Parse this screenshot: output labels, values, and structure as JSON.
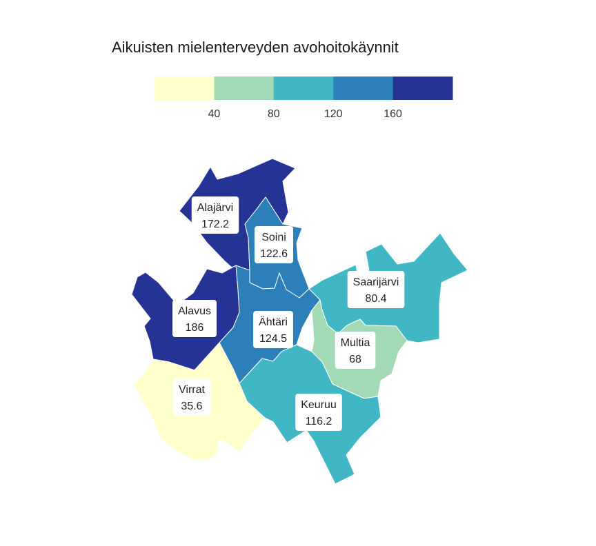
{
  "title": "Aikuisten mielenterveyden avohoitokäynnit",
  "chart_data": {
    "type": "choropleth",
    "title": "Aikuisten mielenterveyden avohoitokäynnit",
    "legend": {
      "breaks": [
        40,
        80,
        120,
        160
      ],
      "colors": [
        "#ffffcc",
        "#a1dab4",
        "#41b6c4",
        "#2c7fb8",
        "#253494"
      ]
    },
    "regions": [
      {
        "name": "Alajärvi",
        "value": 172.2
      },
      {
        "name": "Soini",
        "value": 122.6
      },
      {
        "name": "Saarijärvi",
        "value": 80.4
      },
      {
        "name": "Alavus",
        "value": 186
      },
      {
        "name": "Ähtäri",
        "value": 124.5
      },
      {
        "name": "Multia",
        "value": 68
      },
      {
        "name": "Virrat",
        "value": 35.6
      },
      {
        "name": "Keuruu",
        "value": 116.2
      }
    ]
  }
}
